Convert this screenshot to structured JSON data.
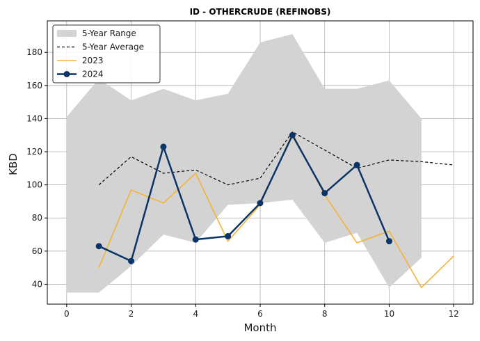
{
  "chart_data": {
    "type": "line",
    "title": "ID - OTHERCRUDE (REFINOBS)",
    "xlabel": "Month",
    "ylabel": "KBD",
    "xlim": [
      -0.6,
      12.6
    ],
    "ylim": [
      28,
      199
    ],
    "xticks": [
      0,
      2,
      4,
      6,
      8,
      10,
      12
    ],
    "yticks": [
      40,
      60,
      80,
      100,
      120,
      140,
      160,
      180
    ],
    "grid": true,
    "legend_position": "top-left",
    "range": {
      "name": "5-Year Range",
      "color": "#d3d3d3",
      "x": [
        0,
        1,
        2,
        3,
        4,
        5,
        6,
        7,
        8,
        9,
        10,
        11
      ],
      "upper": [
        141,
        164,
        151,
        158,
        151,
        155,
        186,
        191,
        158,
        158,
        163,
        140
      ],
      "lower": [
        35,
        35,
        51,
        70,
        65,
        88,
        89,
        91,
        65,
        71,
        38,
        56
      ]
    },
    "series": [
      {
        "name": "5-Year Average",
        "color": "#000000",
        "style": "dashed",
        "x": [
          1,
          2,
          3,
          4,
          5,
          6,
          7,
          8,
          9,
          10,
          11,
          12
        ],
        "values": [
          100,
          117,
          107,
          109,
          100,
          104,
          132,
          121,
          110,
          115,
          114,
          112
        ]
      },
      {
        "name": "2023",
        "color": "#f5b335",
        "style": "solid",
        "x": [
          1,
          2,
          3,
          4,
          5,
          6,
          7,
          8,
          9,
          10,
          11,
          12
        ],
        "values": [
          50,
          97,
          89,
          107,
          66,
          88,
          131,
          94,
          65,
          72,
          38,
          57
        ]
      },
      {
        "name": "2024",
        "color": "#0b3466",
        "style": "solid-markers",
        "x": [
          1,
          2,
          3,
          4,
          5,
          6,
          7,
          8,
          9,
          10
        ],
        "values": [
          63,
          54,
          123,
          67,
          69,
          89,
          130,
          95,
          112,
          66
        ]
      }
    ]
  }
}
